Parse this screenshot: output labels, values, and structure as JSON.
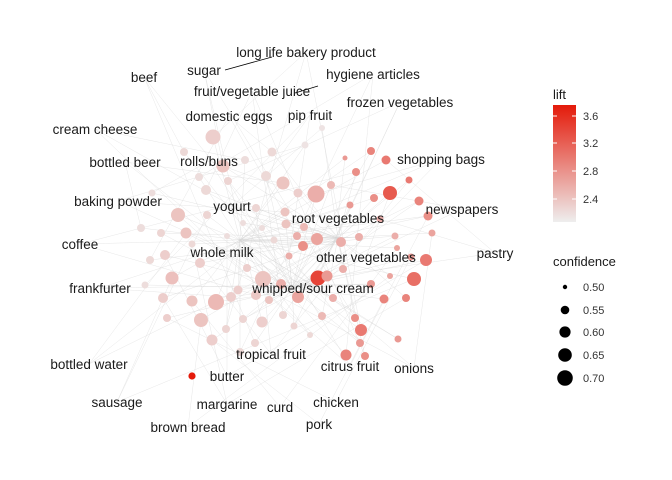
{
  "legend": {
    "lift": {
      "title": "lift",
      "ticks": [
        "3.6",
        "3.2",
        "2.8",
        "2.4"
      ],
      "color_low": "#eeeeee",
      "color_high": "#e41a0a"
    },
    "confidence": {
      "title": "confidence",
      "ticks": [
        "0.50",
        "0.55",
        "0.60",
        "0.65",
        "0.70"
      ]
    }
  },
  "items": [
    {
      "id": "long-life-bakery-product",
      "label": "long life bakery product"
    },
    {
      "id": "sugar",
      "label": "sugar"
    },
    {
      "id": "beef",
      "label": "beef"
    },
    {
      "id": "hygiene-articles",
      "label": "hygiene articles"
    },
    {
      "id": "fruit-vegetable-juice",
      "label": "fruit/vegetable juice"
    },
    {
      "id": "frozen-vegetables",
      "label": "frozen vegetables"
    },
    {
      "id": "cream-cheese",
      "label": "cream cheese"
    },
    {
      "id": "domestic-eggs",
      "label": "domestic eggs"
    },
    {
      "id": "pip-fruit",
      "label": "pip fruit"
    },
    {
      "id": "bottled-beer",
      "label": "bottled beer"
    },
    {
      "id": "rolls-buns",
      "label": "rolls/buns"
    },
    {
      "id": "shopping-bags",
      "label": "shopping bags"
    },
    {
      "id": "baking-powder",
      "label": "baking powder"
    },
    {
      "id": "yogurt",
      "label": "yogurt"
    },
    {
      "id": "newspapers",
      "label": "newspapers"
    },
    {
      "id": "root-vegetables",
      "label": "root vegetables"
    },
    {
      "id": "coffee",
      "label": "coffee"
    },
    {
      "id": "whole-milk",
      "label": "whole milk"
    },
    {
      "id": "pastry",
      "label": "pastry"
    },
    {
      "id": "other-vegetables",
      "label": "other vegetables"
    },
    {
      "id": "frankfurter",
      "label": "frankfurter"
    },
    {
      "id": "whipped-sour-cream",
      "label": "whipped/sour cream"
    },
    {
      "id": "tropical-fruit",
      "label": "tropical fruit"
    },
    {
      "id": "bottled-water",
      "label": "bottled water"
    },
    {
      "id": "citrus-fruit",
      "label": "citrus fruit"
    },
    {
      "id": "onions",
      "label": "onions"
    },
    {
      "id": "butter",
      "label": "butter"
    },
    {
      "id": "sausage",
      "label": "sausage"
    },
    {
      "id": "margarine",
      "label": "margarine"
    },
    {
      "id": "chicken",
      "label": "chicken"
    },
    {
      "id": "curd",
      "label": "curd"
    },
    {
      "id": "brown-bread",
      "label": "brown bread"
    },
    {
      "id": "pork",
      "label": "pork"
    }
  ]
}
